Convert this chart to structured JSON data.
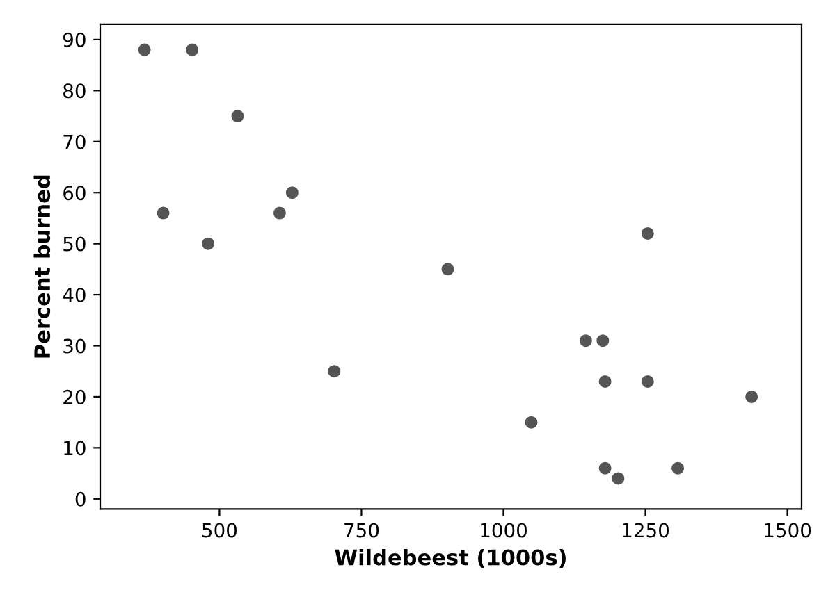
{
  "chart_data": {
    "type": "scatter",
    "xlabel": "Wildebeest (1000s)",
    "ylabel": "Percent burned",
    "x": [
      368,
      452,
      532,
      401,
      480,
      606,
      628,
      902,
      702,
      1254,
      1145,
      1175,
      1179,
      1254,
      1437,
      1049,
      1179,
      1202,
      1307
    ],
    "values": [
      88,
      88,
      75,
      56,
      50,
      56,
      60,
      45,
      25,
      52,
      31,
      31,
      23,
      23,
      20,
      15,
      6,
      4,
      6
    ],
    "color": "#555555",
    "marker": "circle",
    "grid": false,
    "legend": false,
    "xlim": [
      290,
      1525
    ],
    "xticks": [
      500,
      750,
      1000,
      1250,
      1500
    ],
    "ylim": [
      -2,
      93
    ],
    "yticks": [
      0,
      10,
      20,
      30,
      40,
      50,
      60,
      70,
      80,
      90
    ]
  }
}
